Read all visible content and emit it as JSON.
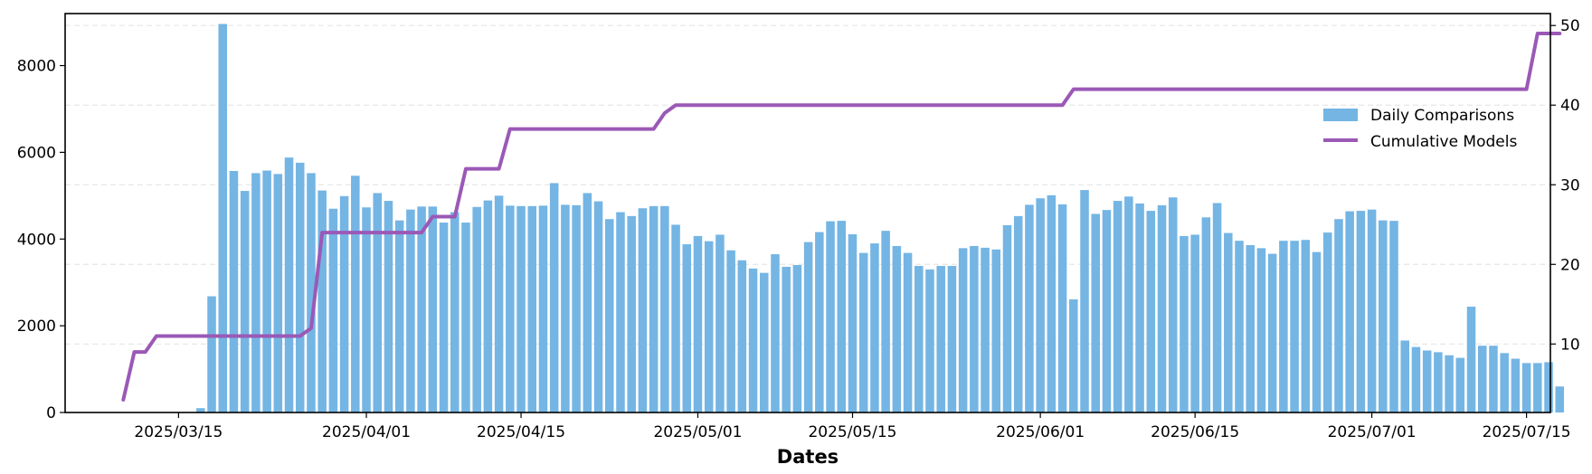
{
  "chart_data": {
    "type": "bar",
    "title": "",
    "xlabel": "Dates",
    "ylabel": "",
    "y2label": "",
    "x_start": "2025-03-10",
    "x_end": "2025-07-18",
    "xticks": [
      "2025/03/15",
      "2025/04/01",
      "2025/04/15",
      "2025/05/01",
      "2025/05/15",
      "2025/06/01",
      "2025/06/15",
      "2025/07/01",
      "2025/07/15"
    ],
    "ylim": [
      0,
      9200
    ],
    "yticks": [
      0,
      2000,
      4000,
      6000,
      8000
    ],
    "y2lim": [
      1.4,
      51.5
    ],
    "y2ticks": [
      10,
      20,
      30,
      40,
      50
    ],
    "grid": "horizontal-dashed",
    "legend_position": "upper-right",
    "colors": {
      "bars": "#74b5e4",
      "line": "#9b59b6",
      "grid": "#e6e6e6"
    },
    "series": [
      {
        "name": "Daily Comparisons",
        "type": "bar",
        "axis": "left",
        "start_date": "2025-03-17",
        "values": [
          100,
          2680,
          8960,
          5570,
          5110,
          5520,
          5580,
          5500,
          5880,
          5760,
          5520,
          5120,
          4700,
          4990,
          5460,
          4730,
          5060,
          4880,
          4430,
          4680,
          4750,
          4750,
          4380,
          4620,
          4380,
          4740,
          4890,
          5000,
          4770,
          4760,
          4760,
          4770,
          5290,
          4790,
          4780,
          5060,
          4870,
          4460,
          4620,
          4530,
          4710,
          4760,
          4760,
          4330,
          3880,
          4070,
          3950,
          4100,
          3740,
          3510,
          3320,
          3220,
          3650,
          3360,
          3400,
          3930,
          4160,
          4410,
          4420,
          4110,
          3680,
          3900,
          4190,
          3840,
          3680,
          3380,
          3300,
          3380,
          3380,
          3790,
          3840,
          3800,
          3760,
          4320,
          4530,
          4790,
          4940,
          5010,
          4800,
          2610,
          5130,
          4580,
          4670,
          4880,
          4980,
          4820,
          4650,
          4780,
          4960,
          4070,
          4100,
          4500,
          4830,
          4140,
          3960,
          3860,
          3790,
          3660,
          3960,
          3960,
          3980,
          3700,
          4150,
          4460,
          4640,
          4650,
          4680,
          4430,
          4420,
          1660,
          1510,
          1430,
          1390,
          1320,
          1260,
          2440,
          1540,
          1540,
          1370,
          1240,
          1140,
          1140,
          1160,
          600
        ]
      },
      {
        "name": "Cumulative Models",
        "type": "line",
        "axis": "right",
        "points": [
          [
            "2025-03-10",
            3
          ],
          [
            "2025-03-11",
            9
          ],
          [
            "2025-03-12",
            9
          ],
          [
            "2025-03-13",
            11
          ],
          [
            "2025-03-26",
            11
          ],
          [
            "2025-03-27",
            12
          ],
          [
            "2025-03-28",
            24
          ],
          [
            "2025-04-06",
            24
          ],
          [
            "2025-04-07",
            26
          ],
          [
            "2025-04-09",
            26
          ],
          [
            "2025-04-10",
            32
          ],
          [
            "2025-04-13",
            32
          ],
          [
            "2025-04-14",
            37
          ],
          [
            "2025-04-27",
            37
          ],
          [
            "2025-04-28",
            39
          ],
          [
            "2025-04-29",
            40
          ],
          [
            "2025-06-03",
            40
          ],
          [
            "2025-06-04",
            42
          ],
          [
            "2025-07-15",
            42
          ],
          [
            "2025-07-16",
            49
          ],
          [
            "2025-07-18",
            49
          ]
        ]
      }
    ]
  }
}
